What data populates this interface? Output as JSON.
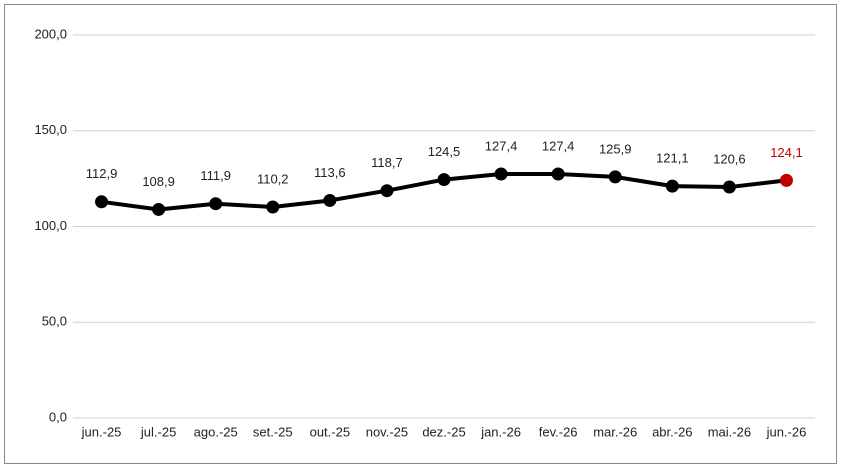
{
  "chart_data": {
    "type": "line",
    "categories": [
      "jun.-25",
      "jul.-25",
      "ago.-25",
      "set.-25",
      "out.-25",
      "nov.-25",
      "dez.-25",
      "jan.-26",
      "fev.-26",
      "mar.-26",
      "abr.-26",
      "mai.-26",
      "jun.-26"
    ],
    "series": [
      {
        "color": "#000000",
        "values": [
          112.9,
          108.9,
          111.9,
          110.2,
          113.6,
          118.7,
          124.5,
          127.4,
          127.4,
          125.9,
          121.1,
          120.6,
          124.1
        ],
        "value_labels": [
          "112,9",
          "108,9",
          "111,9",
          "110,2",
          "113,6",
          "118,7",
          "124,5",
          "127,4",
          "127,4",
          "125,9",
          "121,1",
          "120,6",
          "124,1"
        ],
        "marker_colors": [
          "#000000",
          "#000000",
          "#000000",
          "#000000",
          "#000000",
          "#000000",
          "#000000",
          "#000000",
          "#000000",
          "#000000",
          "#000000",
          "#000000",
          "#c00000"
        ]
      }
    ],
    "ylim": [
      0,
      200
    ],
    "yticks": [
      {
        "value": 0,
        "label": "0,0"
      },
      {
        "value": 50,
        "label": "50,0"
      },
      {
        "value": 100,
        "label": "100,0"
      },
      {
        "value": 150,
        "label": "150,0"
      },
      {
        "value": 200,
        "label": "200,0"
      }
    ],
    "grid": true
  }
}
